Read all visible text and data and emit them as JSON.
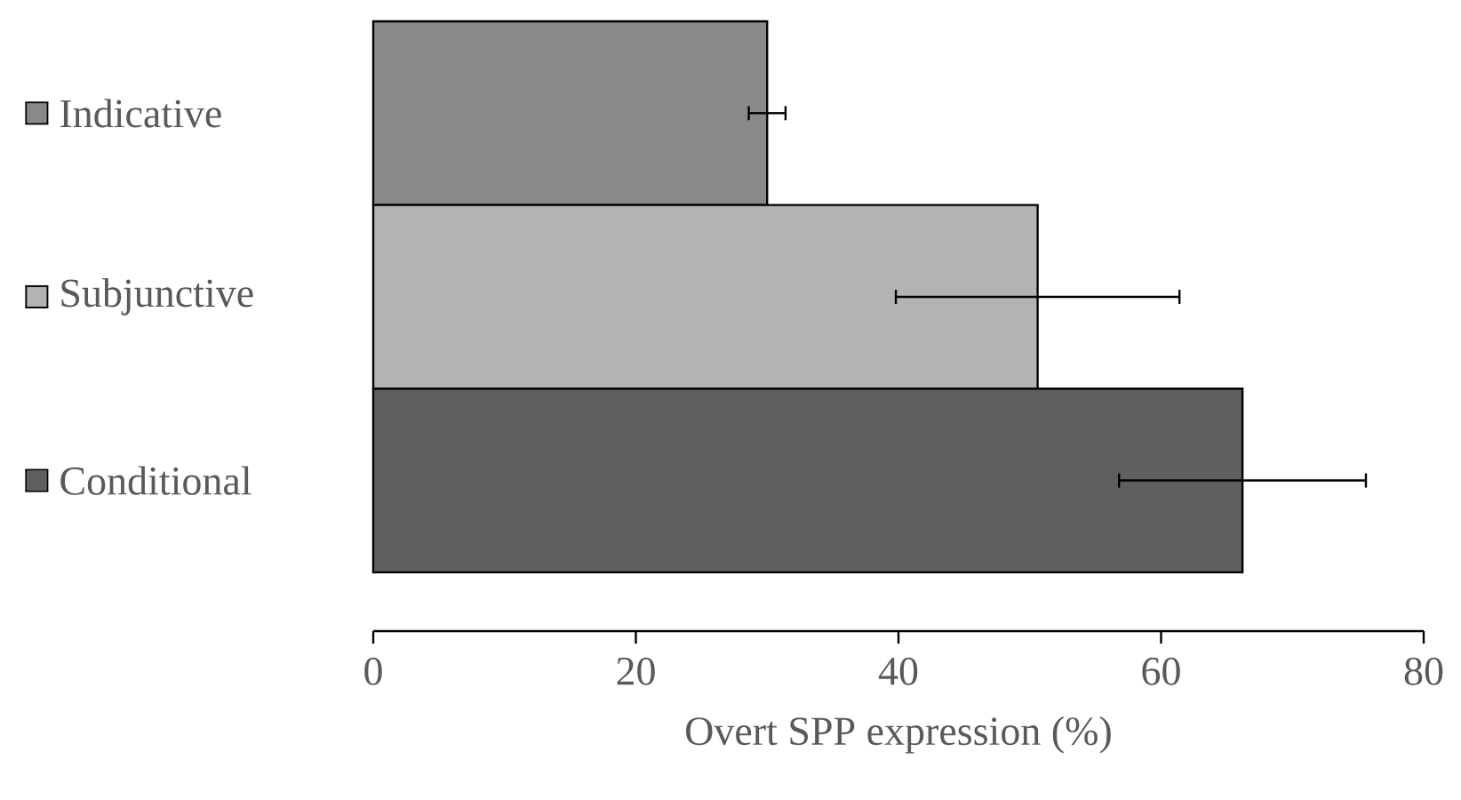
{
  "chart_data": {
    "type": "bar",
    "orientation": "horizontal",
    "xlabel": "Overt SPP expression (%)",
    "categories": [
      "Indicative",
      "Subjunctive",
      "Conditional"
    ],
    "values": [
      30.0,
      50.6,
      66.2
    ],
    "colors": [
      "#898989",
      "#b3b3b3",
      "#5f5f5f"
    ],
    "errors": [
      1.4,
      10.8,
      9.4
    ],
    "xlim": [
      0,
      80
    ],
    "xticks": [
      0,
      20,
      40,
      60,
      80
    ],
    "grid": false
  }
}
